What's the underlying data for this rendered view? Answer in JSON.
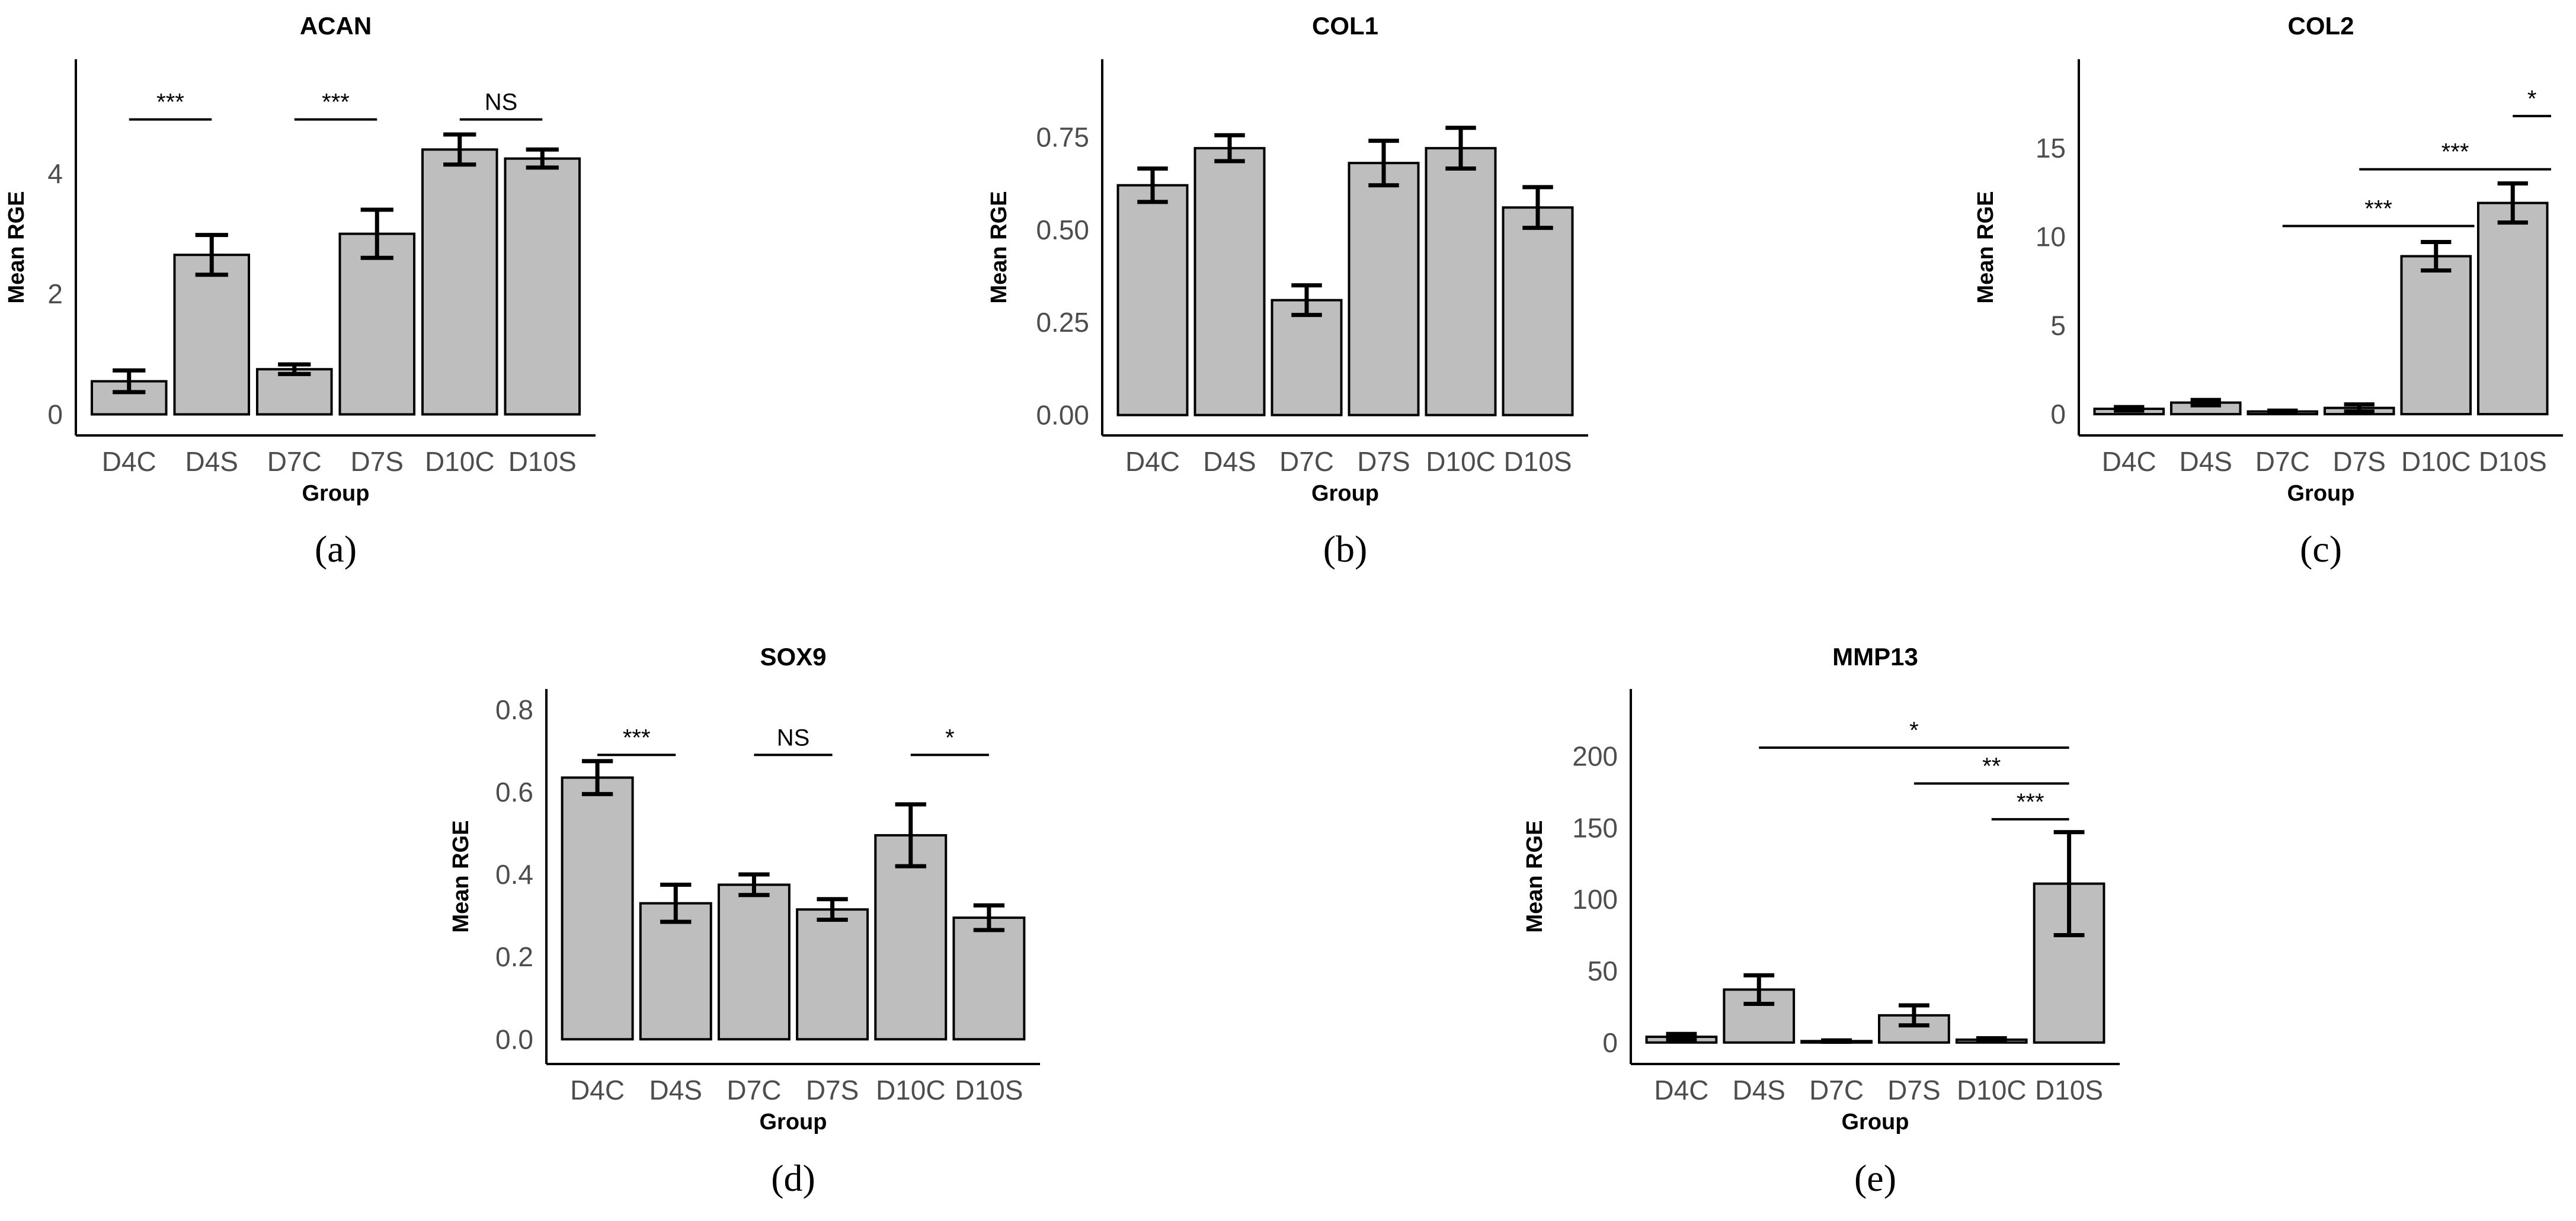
{
  "chart_data": [
    {
      "id": "a",
      "type": "bar",
      "title": "ACAN",
      "panel_label": "(a)",
      "xlabel": "Group",
      "ylabel": "Mean RGE",
      "categories": [
        "D4C",
        "D4S",
        "D7C",
        "D7S",
        "D10C",
        "D10S"
      ],
      "values": [
        0.55,
        2.65,
        0.75,
        3.0,
        4.4,
        4.25
      ],
      "errors": [
        0.18,
        0.33,
        0.08,
        0.4,
        0.25,
        0.15
      ],
      "ylim": [
        -0.35,
        5.9
      ],
      "yticks": [
        0,
        2,
        4
      ],
      "tick_labels": [
        "0",
        "2",
        "4"
      ],
      "significance": [
        {
          "from": 0,
          "to": 1,
          "y": 4.9,
          "label": "***"
        },
        {
          "from": 2,
          "to": 3,
          "y": 4.9,
          "label": "***"
        },
        {
          "from": 4,
          "to": 5,
          "y": 4.9,
          "label": "NS"
        }
      ]
    },
    {
      "id": "b",
      "type": "bar",
      "title": "COL1",
      "panel_label": "(b)",
      "xlabel": "Group",
      "ylabel": "Mean RGE",
      "categories": [
        "D4C",
        "D4S",
        "D7C",
        "D7S",
        "D10C",
        "D10S"
      ],
      "values": [
        0.62,
        0.72,
        0.31,
        0.68,
        0.72,
        0.56
      ],
      "errors": [
        0.045,
        0.035,
        0.04,
        0.06,
        0.055,
        0.055
      ],
      "ylim": [
        -0.055,
        0.96
      ],
      "yticks": [
        0,
        0.25,
        0.5,
        0.75
      ],
      "tick_labels": [
        "0.00",
        "0.25",
        "0.50",
        "0.75"
      ],
      "significance": []
    },
    {
      "id": "c",
      "type": "bar",
      "title": "COL2",
      "panel_label": "(c)",
      "xlabel": "Group",
      "ylabel": "Mean RGE",
      "categories": [
        "D4C",
        "D4S",
        "D7C",
        "D7S",
        "D10C",
        "D10S"
      ],
      "values": [
        0.3,
        0.65,
        0.15,
        0.35,
        8.9,
        11.9
      ],
      "errors": [
        0.1,
        0.15,
        0.05,
        0.2,
        0.8,
        1.1
      ],
      "ylim": [
        -1.2,
        20.0
      ],
      "yticks": [
        0,
        5,
        10,
        15
      ],
      "tick_labels": [
        "0",
        "5",
        "10",
        "15"
      ],
      "significance": [
        {
          "from": 5,
          "to": 5.5,
          "y": 16.8,
          "label": "*"
        },
        {
          "from": 3,
          "to": 5.5,
          "y": 13.8,
          "label": "***"
        },
        {
          "from": 2,
          "to": 4.5,
          "y": 10.6,
          "label": "***"
        }
      ]
    },
    {
      "id": "d",
      "type": "bar",
      "title": "SOX9",
      "panel_label": "(d)",
      "xlabel": "Group",
      "ylabel": "Mean RGE",
      "categories": [
        "D4C",
        "D4S",
        "D7C",
        "D7S",
        "D10C",
        "D10S"
      ],
      "values": [
        0.635,
        0.33,
        0.375,
        0.315,
        0.495,
        0.295
      ],
      "errors": [
        0.04,
        0.045,
        0.025,
        0.025,
        0.075,
        0.03
      ],
      "ylim": [
        -0.06,
        0.85
      ],
      "yticks": [
        0,
        0.2,
        0.4,
        0.6,
        0.8
      ],
      "tick_labels": [
        "0.0",
        "0.2",
        "0.4",
        "0.6",
        "0.8"
      ],
      "significance": [
        {
          "from": 0,
          "to": 1,
          "y": 0.69,
          "label": "***"
        },
        {
          "from": 2,
          "to": 3,
          "y": 0.69,
          "label": "NS"
        },
        {
          "from": 4,
          "to": 5,
          "y": 0.69,
          "label": "*"
        }
      ]
    },
    {
      "id": "e",
      "type": "bar",
      "title": "MMP13",
      "panel_label": "(e)",
      "xlabel": "Group",
      "ylabel": "Mean RGE",
      "categories": [
        "D4C",
        "D4S",
        "D7C",
        "D7S",
        "D10C",
        "D10S"
      ],
      "values": [
        4.0,
        37.0,
        1.0,
        19.0,
        2.0,
        111.0
      ],
      "errors": [
        2.0,
        10.0,
        0.5,
        7.0,
        1.0,
        36.0
      ],
      "ylim": [
        -15.0,
        247.0
      ],
      "yticks": [
        0,
        50,
        100,
        150,
        200
      ],
      "tick_labels": [
        "0",
        "50",
        "100",
        "150",
        "200"
      ],
      "significance": [
        {
          "from": 1,
          "to": 5,
          "y": 206,
          "label": "*"
        },
        {
          "from": 3,
          "to": 5,
          "y": 181,
          "label": "**"
        },
        {
          "from": 4,
          "to": 5,
          "y": 156,
          "label": "***"
        }
      ]
    }
  ]
}
